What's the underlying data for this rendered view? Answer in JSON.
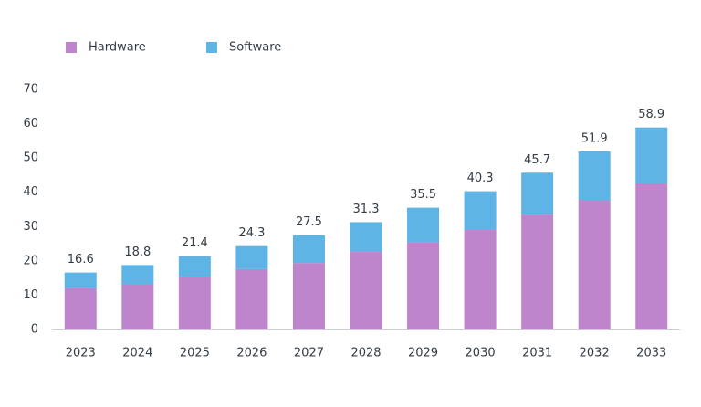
{
  "chart_data": {
    "type": "stacked_bar",
    "categories": [
      "2023",
      "2024",
      "2025",
      "2026",
      "2027",
      "2028",
      "2029",
      "2030",
      "2031",
      "2032",
      "2033"
    ],
    "series": [
      {
        "name": "Hardware",
        "color": "#bf85cc",
        "values": [
          12.0,
          13.3,
          15.4,
          17.6,
          19.4,
          22.6,
          25.3,
          29.0,
          33.5,
          37.8,
          42.6
        ]
      },
      {
        "name": "Software",
        "color": "#5db4e5",
        "values": [
          4.6,
          5.5,
          6.0,
          6.7,
          8.1,
          8.7,
          10.2,
          11.3,
          12.2,
          14.1,
          16.3
        ]
      }
    ],
    "totals": [
      16.6,
      18.8,
      21.4,
      24.3,
      27.5,
      31.3,
      35.5,
      40.3,
      45.7,
      51.9,
      58.9
    ],
    "ylim": [
      0,
      70
    ],
    "yticks": [
      0,
      10,
      20,
      30,
      40,
      50,
      60,
      70
    ],
    "grid": false
  }
}
